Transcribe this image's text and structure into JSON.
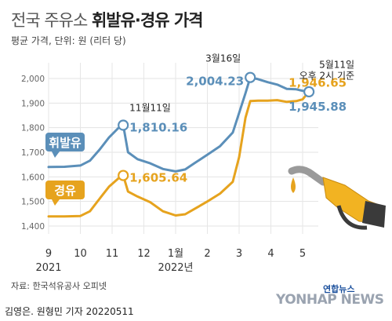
{
  "header": {
    "title_light": "전국 주유소",
    "title_bold": "휘발유·경유 가격",
    "subtitle": "평균 가격, 단위: 원 (리터 당)"
  },
  "footer": {
    "source": "자료: 한국석유공사 오피넷",
    "byline": "김영은. 원형민 기자  20220511",
    "logo_small": "연합뉴스",
    "logo_big": "YONHAP NEWS"
  },
  "chart_data": {
    "type": "line",
    "title": "전국 주유소 휘발유·경유 가격",
    "ylabel": "평균 가격, 단위: 원 (리터 당)",
    "ylim": [
      1400,
      2000
    ],
    "yticks": [
      "1,400",
      "1,500",
      "1,600",
      "1,700",
      "1,800",
      "1,900",
      "2,000"
    ],
    "xticks": [
      "9",
      "10",
      "11",
      "12",
      "1월",
      "2",
      "3",
      "4",
      "5"
    ],
    "xtick_positions": [
      9,
      10,
      11,
      12,
      13,
      14,
      15,
      16,
      17
    ],
    "year_labels": [
      {
        "text": "2021",
        "x": 9
      },
      {
        "text": "2022년",
        "x": 13
      }
    ],
    "series": [
      {
        "name": "휘발유",
        "color": "#5b8fb9",
        "points": [
          [
            9.0,
            1640
          ],
          [
            9.5,
            1641
          ],
          [
            10.0,
            1646
          ],
          [
            10.3,
            1666
          ],
          [
            10.6,
            1710
          ],
          [
            10.9,
            1760
          ],
          [
            11.2,
            1799
          ],
          [
            11.35,
            1810.16
          ],
          [
            11.5,
            1700
          ],
          [
            11.8,
            1672
          ],
          [
            12.2,
            1655
          ],
          [
            12.6,
            1632
          ],
          [
            13.0,
            1622
          ],
          [
            13.3,
            1630
          ],
          [
            13.6,
            1656
          ],
          [
            14.0,
            1690
          ],
          [
            14.4,
            1725
          ],
          [
            14.8,
            1780
          ],
          [
            15.0,
            1860
          ],
          [
            15.2,
            1940
          ],
          [
            15.35,
            2004.23
          ],
          [
            15.6,
            1997
          ],
          [
            15.9,
            1985
          ],
          [
            16.2,
            1975
          ],
          [
            16.5,
            1958
          ],
          [
            16.8,
            1956
          ],
          [
            17.0,
            1950
          ],
          [
            17.2,
            1945.88
          ]
        ]
      },
      {
        "name": "경유",
        "color": "#e6a31e",
        "points": [
          [
            9.0,
            1439
          ],
          [
            9.5,
            1439
          ],
          [
            10.0,
            1441
          ],
          [
            10.3,
            1460
          ],
          [
            10.6,
            1510
          ],
          [
            10.9,
            1560
          ],
          [
            11.2,
            1594
          ],
          [
            11.35,
            1605.64
          ],
          [
            11.5,
            1540
          ],
          [
            11.8,
            1520
          ],
          [
            12.2,
            1497
          ],
          [
            12.6,
            1460
          ],
          [
            13.0,
            1443
          ],
          [
            13.3,
            1448
          ],
          [
            13.6,
            1470
          ],
          [
            14.0,
            1500
          ],
          [
            14.4,
            1532
          ],
          [
            14.8,
            1580
          ],
          [
            15.0,
            1680
          ],
          [
            15.2,
            1840
          ],
          [
            15.35,
            1908
          ],
          [
            15.6,
            1910
          ],
          [
            15.9,
            1910
          ],
          [
            16.2,
            1912
          ],
          [
            16.5,
            1905
          ],
          [
            16.8,
            1908
          ],
          [
            17.0,
            1915
          ],
          [
            17.2,
            1946.65
          ]
        ]
      }
    ],
    "annotations": [
      {
        "date": "11월11일",
        "value": "1,810.16",
        "series": "휘발유",
        "x": 11.35,
        "y": 1810.16
      },
      {
        "value": "1,605.64",
        "series": "경유",
        "x": 11.35,
        "y": 1605.64
      },
      {
        "date": "3월16일",
        "value": "2,004.23",
        "series": "휘발유",
        "x": 15.35,
        "y": 2004.23
      },
      {
        "date": "5월11일",
        "note": "오후 2시 기준",
        "value": "1,946.65",
        "series": "경유",
        "x": 17.2,
        "y": 1946.65
      },
      {
        "value": "1,945.88",
        "series": "휘발유",
        "x": 17.2,
        "y": 1945.88
      }
    ],
    "grid": true,
    "legend": "inline labels on left"
  }
}
